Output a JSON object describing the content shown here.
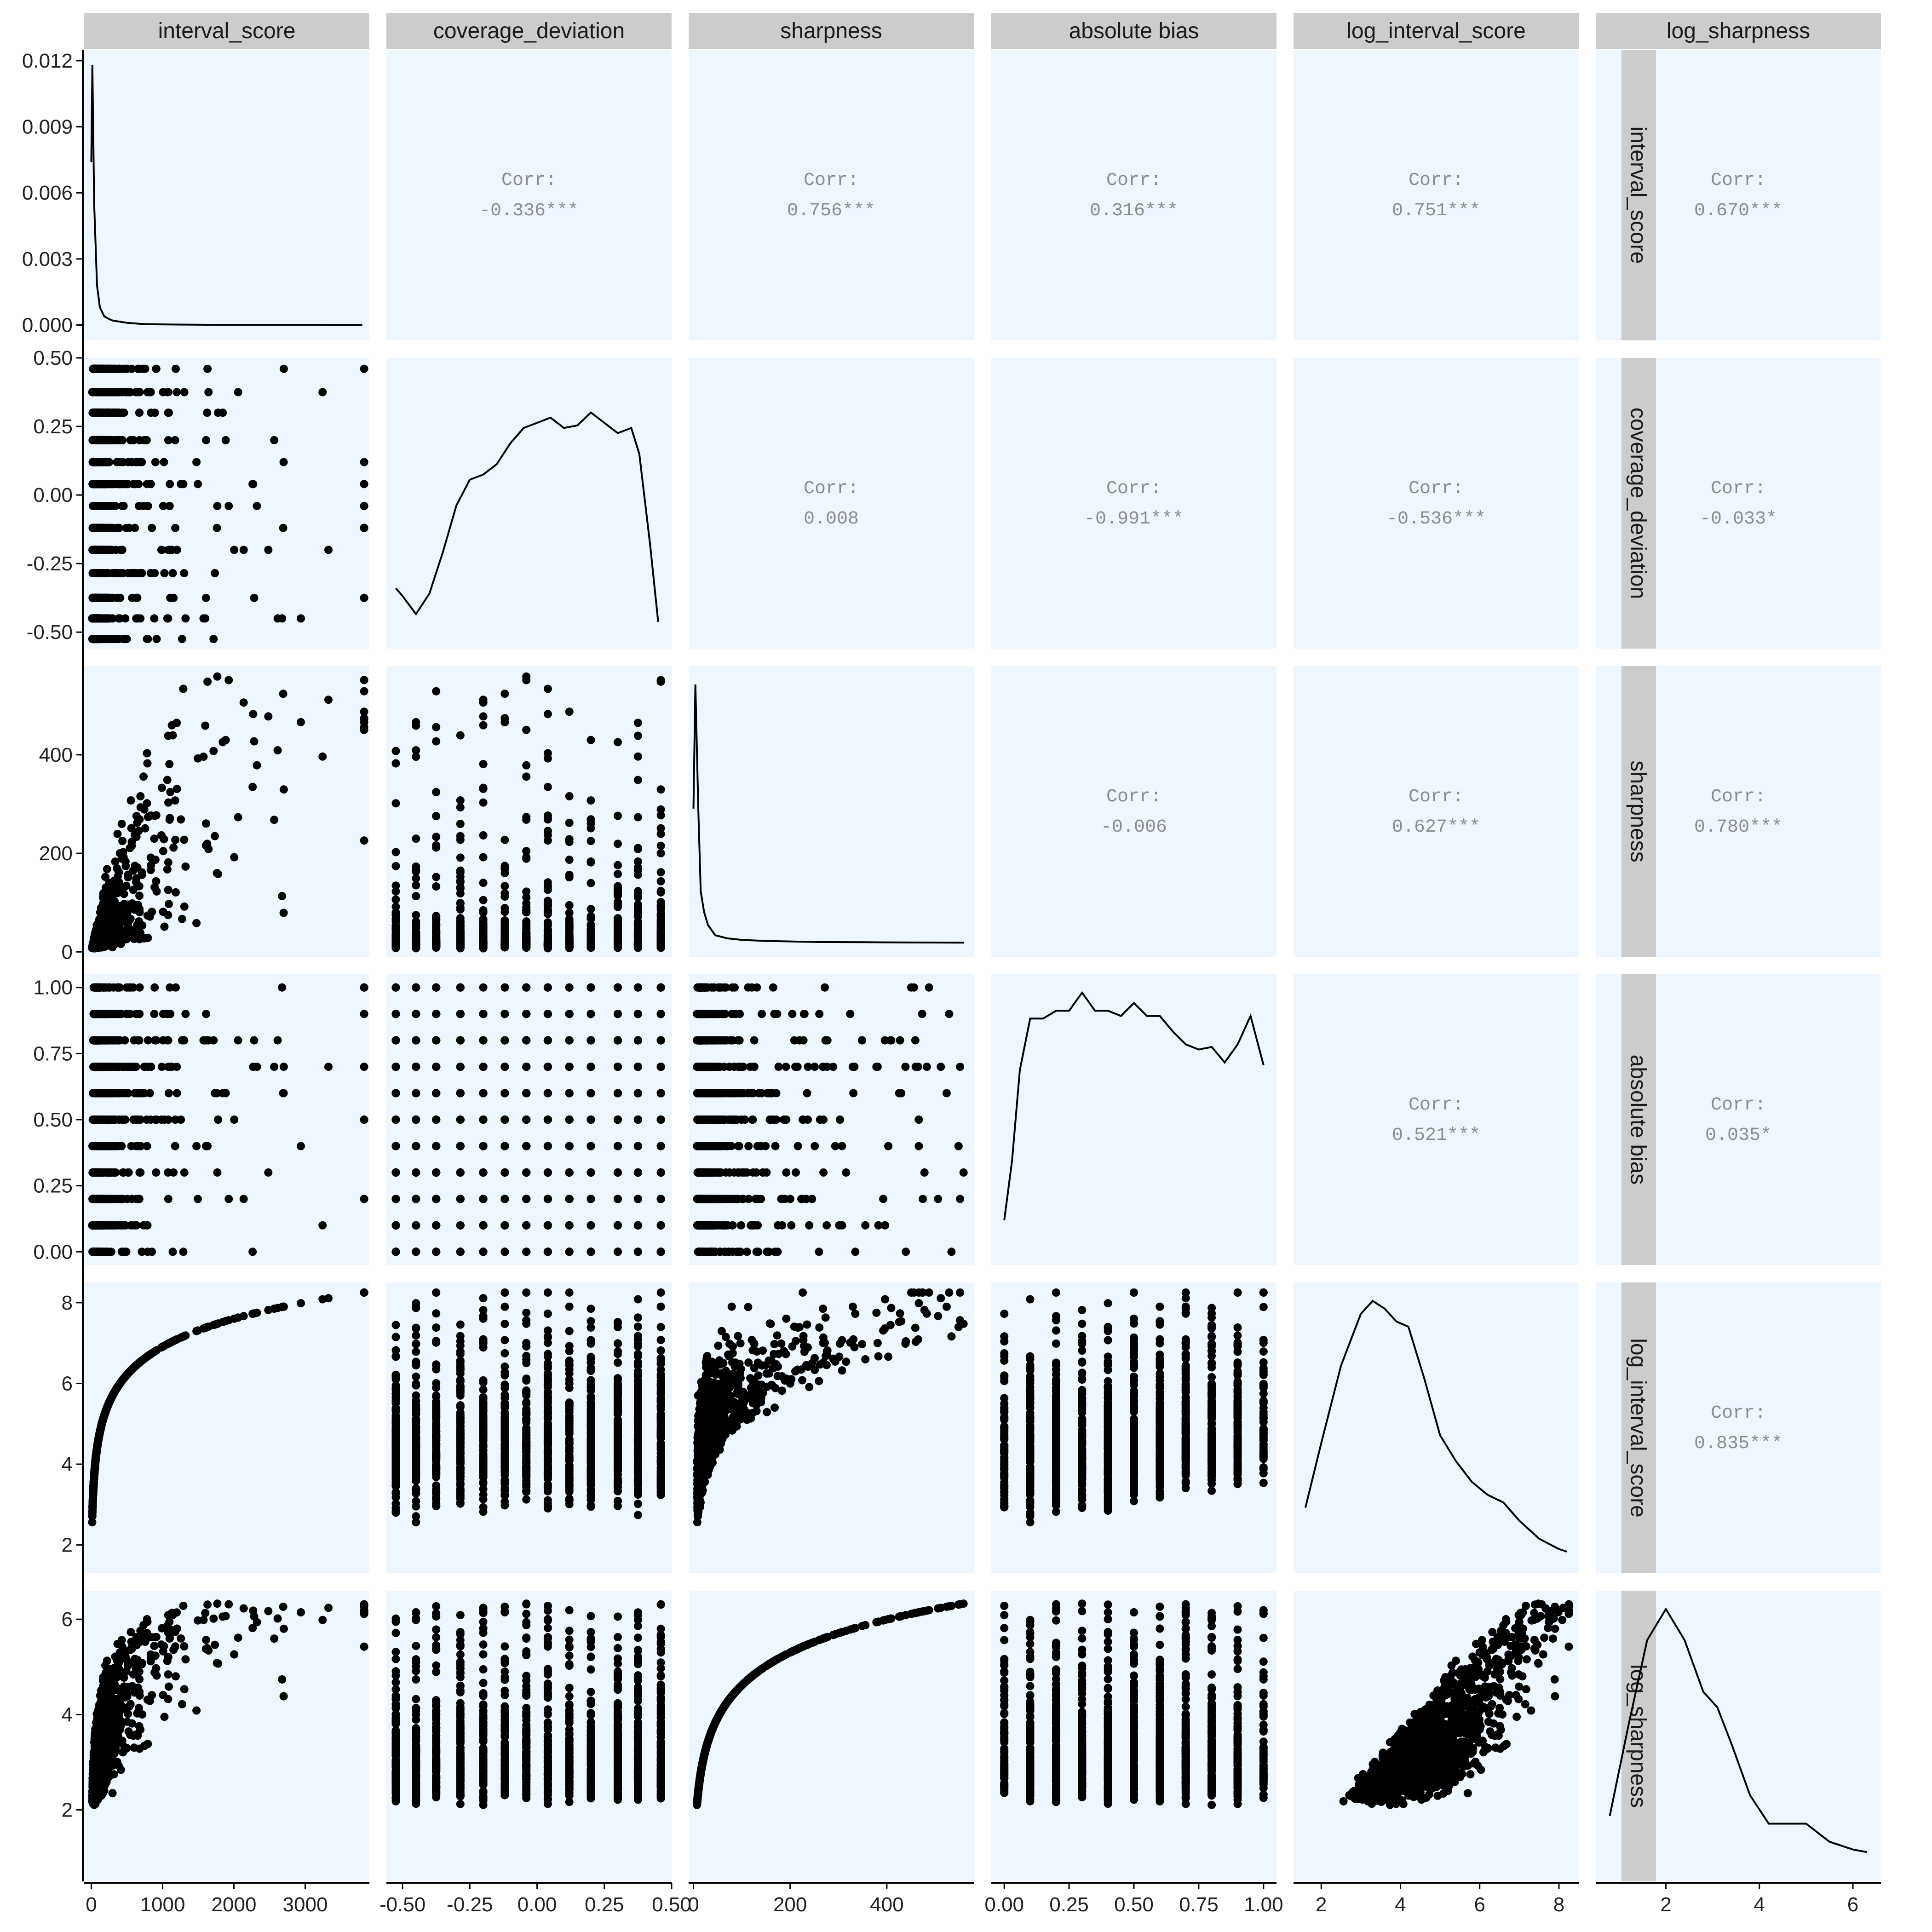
{
  "colors": {
    "panel_background": "#eef6ff",
    "strip_background": "#cccccc",
    "points": "#000000",
    "density_line": "#000000",
    "corr_text": "#8c8c8c",
    "axis_line": "#000000"
  },
  "chart_data": {
    "type": "scatter",
    "variables": [
      {
        "name": "interval_score",
        "lim": [
          -100,
          3900
        ],
        "ticks": [
          {
            "v": 0,
            "label": "0"
          },
          {
            "v": 1000,
            "label": "1000"
          },
          {
            "v": 2000,
            "label": "2000"
          },
          {
            "v": 3000,
            "label": "3000"
          }
        ]
      },
      {
        "name": "coverage_deviation",
        "lim": [
          -0.56,
          0.5
        ],
        "ticks": [
          {
            "v": -0.5,
            "label": "-0.50"
          },
          {
            "v": -0.25,
            "label": "-0.25"
          },
          {
            "v": 0,
            "label": "0.00"
          },
          {
            "v": 0.25,
            "label": "0.25"
          },
          {
            "v": 0.5,
            "label": "0.50"
          }
        ]
      },
      {
        "name": "sharpness",
        "lim": [
          -10,
          580
        ],
        "ticks": [
          {
            "v": 0,
            "label": "0"
          },
          {
            "v": 200,
            "label": "200"
          },
          {
            "v": 400,
            "label": "400"
          }
        ]
      },
      {
        "name": "absolute bias",
        "lim": [
          -0.05,
          1.05
        ],
        "ticks": [
          {
            "v": 0,
            "label": "0.00"
          },
          {
            "v": 0.25,
            "label": "0.25"
          },
          {
            "v": 0.5,
            "label": "0.50"
          },
          {
            "v": 0.75,
            "label": "0.75"
          },
          {
            "v": 1,
            "label": "1.00"
          }
        ]
      },
      {
        "name": "log_interval_score",
        "lim": [
          1.3,
          8.5
        ],
        "ticks": [
          {
            "v": 2,
            "label": "2"
          },
          {
            "v": 4,
            "label": "4"
          },
          {
            "v": 6,
            "label": "6"
          },
          {
            "v": 8,
            "label": "8"
          }
        ]
      },
      {
        "name": "log_sharpness",
        "lim": [
          0.5,
          6.6
        ],
        "ticks": [
          {
            "v": 2,
            "label": "2"
          },
          {
            "v": 4,
            "label": "4"
          },
          {
            "v": 6,
            "label": "6"
          }
        ]
      }
    ],
    "density_y_axis": {
      "lim": [
        -0.0007,
        0.0125
      ],
      "ticks": [
        {
          "v": 0,
          "label": "0.000"
        },
        {
          "v": 0.003,
          "label": "0.003"
        },
        {
          "v": 0.006,
          "label": "0.006"
        },
        {
          "v": 0.009,
          "label": "0.009"
        },
        {
          "v": 0.012,
          "label": "0.012"
        }
      ]
    },
    "correlations": [
      {
        "row": 0,
        "col": 1,
        "label": "Corr:",
        "value": "-0.336***"
      },
      {
        "row": 0,
        "col": 2,
        "label": "Corr:",
        "value": "0.756***"
      },
      {
        "row": 0,
        "col": 3,
        "label": "Corr:",
        "value": "0.316***"
      },
      {
        "row": 0,
        "col": 4,
        "label": "Corr:",
        "value": "0.751***"
      },
      {
        "row": 0,
        "col": 5,
        "label": "Corr:",
        "value": "0.670***"
      },
      {
        "row": 1,
        "col": 2,
        "label": "Corr:",
        "value": "0.008"
      },
      {
        "row": 1,
        "col": 3,
        "label": "Corr:",
        "value": "-0.991***"
      },
      {
        "row": 1,
        "col": 4,
        "label": "Corr:",
        "value": "-0.536***"
      },
      {
        "row": 1,
        "col": 5,
        "label": "Corr:",
        "value": "-0.033*"
      },
      {
        "row": 2,
        "col": 3,
        "label": "Corr:",
        "value": "-0.006"
      },
      {
        "row": 2,
        "col": 4,
        "label": "Corr:",
        "value": "0.627***"
      },
      {
        "row": 2,
        "col": 5,
        "label": "Corr:",
        "value": "0.780***"
      },
      {
        "row": 3,
        "col": 4,
        "label": "Corr:",
        "value": "0.521***"
      },
      {
        "row": 3,
        "col": 5,
        "label": "Corr:",
        "value": "0.035*"
      },
      {
        "row": 4,
        "col": 5,
        "label": "Corr:",
        "value": "0.835***"
      }
    ],
    "densities": [
      {
        "var": 0,
        "curve": [
          [
            0,
            0.0074
          ],
          [
            15,
            0.0118
          ],
          [
            40,
            0.0055
          ],
          [
            80,
            0.0018
          ],
          [
            120,
            0.0008
          ],
          [
            180,
            0.0004
          ],
          [
            230,
            0.0003
          ],
          [
            300,
            0.0002
          ],
          [
            400,
            0.00015
          ],
          [
            500,
            0.0001
          ],
          [
            700,
            5e-05
          ],
          [
            900,
            3e-05
          ],
          [
            1200,
            2e-05
          ],
          [
            1600,
            1e-05
          ],
          [
            2000,
            5e-06
          ],
          [
            2600,
            2e-06
          ],
          [
            3200,
            1e-06
          ],
          [
            3800,
            0.0
          ]
        ]
      },
      {
        "var": 1,
        "curve": [
          [
            -0.525,
            0.18
          ],
          [
            -0.5,
            0.15
          ],
          [
            -0.45,
            0.08
          ],
          [
            -0.4,
            0.16
          ],
          [
            -0.35,
            0.32
          ],
          [
            -0.3,
            0.5
          ],
          [
            -0.25,
            0.6
          ],
          [
            -0.2,
            0.62
          ],
          [
            -0.15,
            0.66
          ],
          [
            -0.1,
            0.74
          ],
          [
            -0.05,
            0.8
          ],
          [
            0.0,
            0.82
          ],
          [
            0.05,
            0.84
          ],
          [
            0.1,
            0.8
          ],
          [
            0.15,
            0.81
          ],
          [
            0.2,
            0.86
          ],
          [
            0.25,
            0.82
          ],
          [
            0.3,
            0.78
          ],
          [
            0.35,
            0.8
          ],
          [
            0.38,
            0.7
          ],
          [
            0.42,
            0.35
          ],
          [
            0.45,
            0.05
          ]
        ]
      },
      {
        "var": 2,
        "curve": [
          [
            0,
            0.52
          ],
          [
            4,
            1.0
          ],
          [
            10,
            0.52
          ],
          [
            15,
            0.2
          ],
          [
            22,
            0.12
          ],
          [
            30,
            0.07
          ],
          [
            45,
            0.03
          ],
          [
            70,
            0.018
          ],
          [
            100,
            0.012
          ],
          [
            150,
            0.008
          ],
          [
            250,
            0.004
          ],
          [
            350,
            0.003
          ],
          [
            450,
            0.002
          ],
          [
            560,
            0.0015
          ]
        ]
      },
      {
        "var": 3,
        "curve": [
          [
            0.0,
            0.12
          ],
          [
            0.03,
            0.35
          ],
          [
            0.06,
            0.7
          ],
          [
            0.1,
            0.9
          ],
          [
            0.15,
            0.9
          ],
          [
            0.2,
            0.93
          ],
          [
            0.25,
            0.93
          ],
          [
            0.3,
            1.0
          ],
          [
            0.35,
            0.93
          ],
          [
            0.4,
            0.93
          ],
          [
            0.45,
            0.91
          ],
          [
            0.5,
            0.96
          ],
          [
            0.55,
            0.91
          ],
          [
            0.6,
            0.91
          ],
          [
            0.65,
            0.85
          ],
          [
            0.7,
            0.8
          ],
          [
            0.75,
            0.78
          ],
          [
            0.8,
            0.79
          ],
          [
            0.85,
            0.73
          ],
          [
            0.9,
            0.8
          ],
          [
            0.95,
            0.91
          ],
          [
            1.0,
            0.72
          ]
        ]
      },
      {
        "var": 4,
        "curve": [
          [
            1.6,
            0.2
          ],
          [
            2.0,
            0.45
          ],
          [
            2.5,
            0.75
          ],
          [
            3.0,
            0.95
          ],
          [
            3.3,
            1.0
          ],
          [
            3.6,
            0.97
          ],
          [
            3.9,
            0.92
          ],
          [
            4.2,
            0.9
          ],
          [
            4.6,
            0.7
          ],
          [
            5.0,
            0.48
          ],
          [
            5.4,
            0.38
          ],
          [
            5.8,
            0.3
          ],
          [
            6.2,
            0.25
          ],
          [
            6.6,
            0.22
          ],
          [
            7.0,
            0.15
          ],
          [
            7.5,
            0.08
          ],
          [
            8.0,
            0.04
          ],
          [
            8.2,
            0.03
          ]
        ]
      },
      {
        "var": 5,
        "curve": [
          [
            0.8,
            0.2
          ],
          [
            1.2,
            0.55
          ],
          [
            1.6,
            0.88
          ],
          [
            2.0,
            1.0
          ],
          [
            2.4,
            0.88
          ],
          [
            2.8,
            0.68
          ],
          [
            3.1,
            0.62
          ],
          [
            3.4,
            0.48
          ],
          [
            3.8,
            0.28
          ],
          [
            4.2,
            0.17
          ],
          [
            4.6,
            0.17
          ],
          [
            5.0,
            0.17
          ],
          [
            5.5,
            0.1
          ],
          [
            6.0,
            0.07
          ],
          [
            6.3,
            0.06
          ]
        ]
      }
    ]
  }
}
